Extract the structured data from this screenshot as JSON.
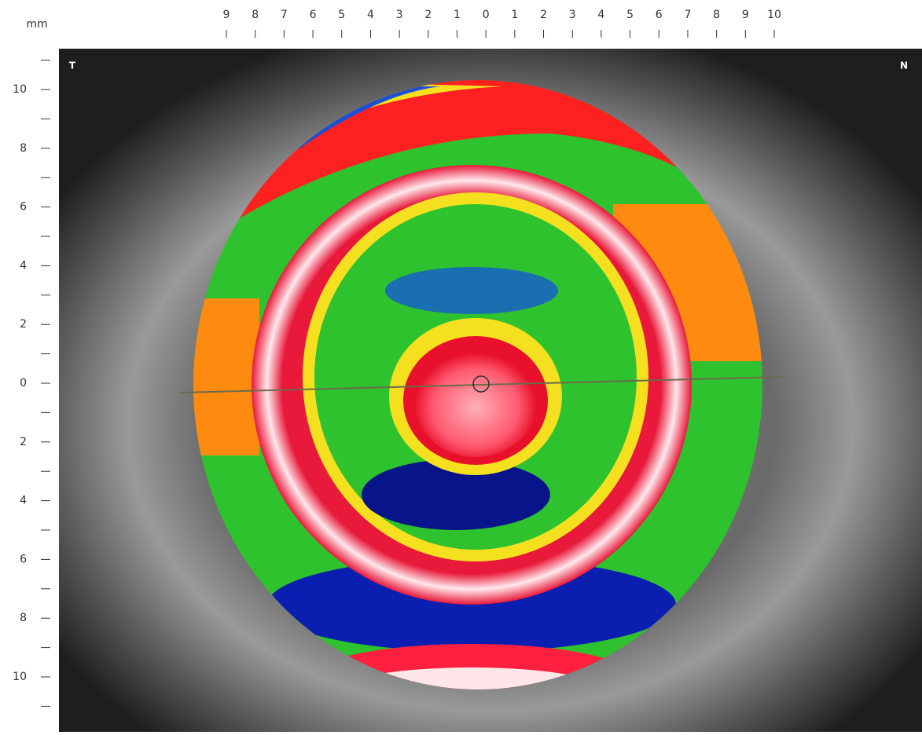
{
  "unit": "mm",
  "top_ruler": {
    "labels": [
      "9",
      "8",
      "7",
      "6",
      "5",
      "4",
      "3",
      "2",
      "1",
      "0",
      "1",
      "2",
      "3",
      "4",
      "5",
      "6",
      "7",
      "8",
      "9",
      "10"
    ]
  },
  "left_ruler": {
    "labels": [
      "10",
      "8",
      "6",
      "4",
      "2",
      "0",
      "2",
      "4",
      "6",
      "8",
      "10"
    ]
  },
  "corners": {
    "left": "T",
    "right": "N"
  }
}
